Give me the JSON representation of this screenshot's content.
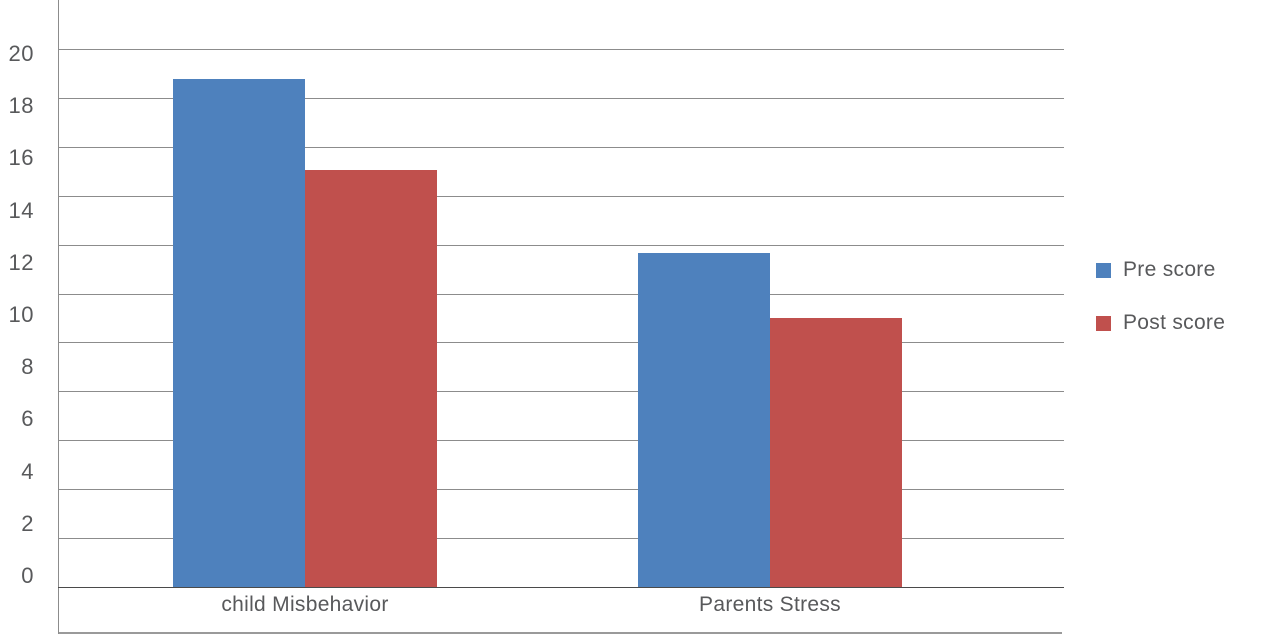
{
  "chart_data": {
    "type": "bar",
    "title": "",
    "xlabel": "",
    "ylabel": "",
    "categories": [
      "child Misbehavior",
      "Parents Stress"
    ],
    "series": [
      {
        "name": "Pre score",
        "color": "#4e81bd",
        "values": [
          18.9,
          12.4
        ]
      },
      {
        "name": "Post score",
        "color": "#c0504d",
        "values": [
          15.5,
          10.0
        ]
      }
    ],
    "ylim": [
      0,
      20
    ],
    "ytick_step": 2,
    "yticks": [
      20,
      18,
      16,
      14,
      12,
      10,
      8,
      6,
      4,
      2,
      0
    ],
    "grid": true,
    "gridline_count": 12,
    "legend_position": "right"
  },
  "colors": {
    "text": "#58595b",
    "gridline": "#8c8c8c",
    "baseline": "#4a4a4a",
    "background": "#ffffff"
  }
}
